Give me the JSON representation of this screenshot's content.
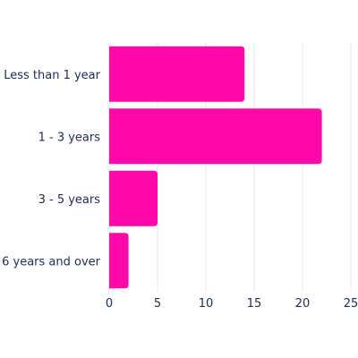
{
  "chart_data": {
    "type": "bar",
    "orientation": "horizontal",
    "categories": [
      "Less than 1 year",
      "1 - 3 years",
      "3 - 5 years",
      "6 years and over"
    ],
    "values": [
      14,
      22,
      5,
      2
    ],
    "xlim": [
      0,
      25
    ],
    "xticks": [
      "0",
      "5",
      "10",
      "15",
      "20",
      "25"
    ],
    "title": "",
    "xlabel": "",
    "ylabel": "",
    "grid": "vertical",
    "bar_color": "#ff0aa8"
  }
}
